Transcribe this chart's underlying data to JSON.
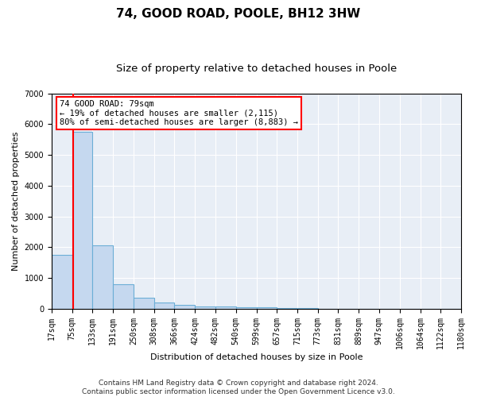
{
  "title": "74, GOOD ROAD, POOLE, BH12 3HW",
  "subtitle": "Size of property relative to detached houses in Poole",
  "xlabel": "Distribution of detached houses by size in Poole",
  "ylabel": "Number of detached properties",
  "bin_edges": [
    17,
    75,
    133,
    191,
    250,
    308,
    366,
    424,
    482,
    540,
    599,
    657,
    715,
    773,
    831,
    889,
    947,
    1006,
    1064,
    1122,
    1180
  ],
  "bar_heights": [
    1750,
    5750,
    2050,
    800,
    350,
    200,
    120,
    80,
    55,
    45,
    35,
    25,
    20,
    0,
    0,
    0,
    0,
    0,
    0,
    0
  ],
  "bar_color": "#c5d8ef",
  "bar_edgecolor": "#6baed6",
  "property_size": 79,
  "annotation_text": "74 GOOD ROAD: 79sqm\n← 19% of detached houses are smaller (2,115)\n80% of semi-detached houses are larger (8,883) →",
  "annotation_box_color": "white",
  "annotation_box_edgecolor": "red",
  "vline_color": "red",
  "ylim": [
    0,
    7000
  ],
  "yticks": [
    0,
    1000,
    2000,
    3000,
    4000,
    5000,
    6000,
    7000
  ],
  "background_color": "#e8eef6",
  "footer_line1": "Contains HM Land Registry data © Crown copyright and database right 2024.",
  "footer_line2": "Contains public sector information licensed under the Open Government Licence v3.0.",
  "title_fontsize": 11,
  "subtitle_fontsize": 9.5,
  "axis_label_fontsize": 8,
  "tick_fontsize": 7,
  "footer_fontsize": 6.5,
  "annotation_fontsize": 7.5
}
